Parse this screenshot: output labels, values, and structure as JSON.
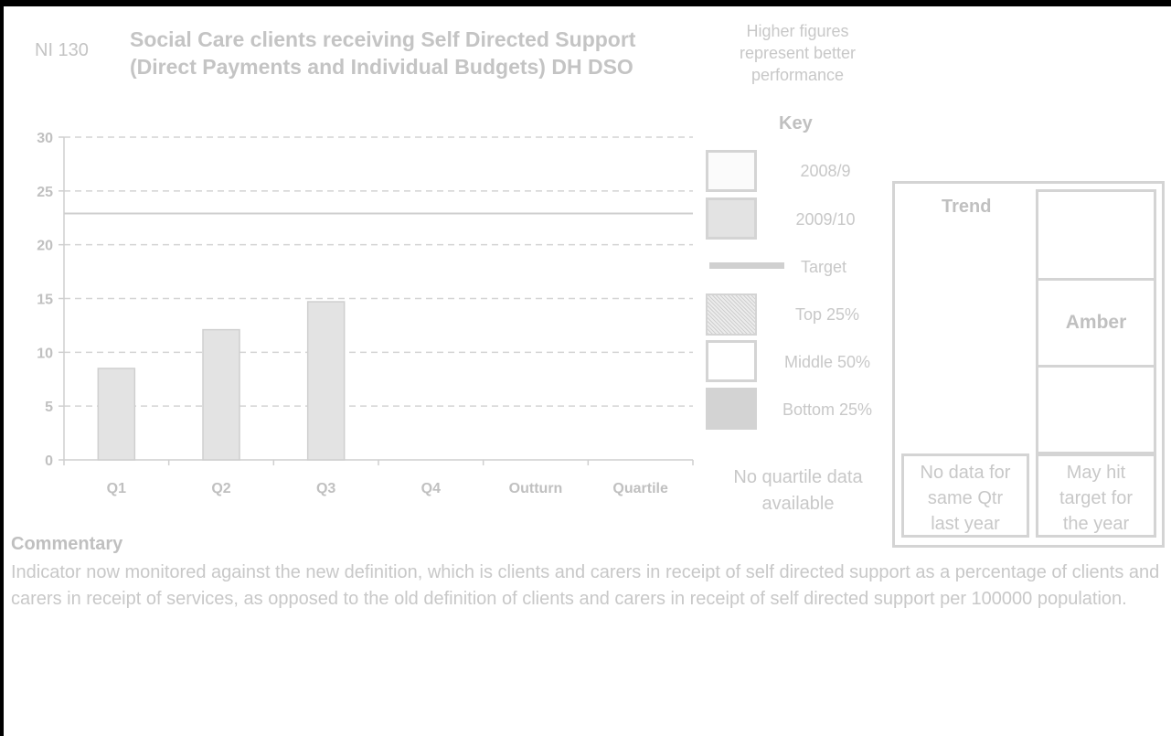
{
  "header": {
    "indicator_code": "NI 130",
    "title_line1": "Social Care clients receiving Self Directed Support",
    "title_line2": "(Direct Payments and Individual Budgets) DH DSO",
    "note_line1": "Higher figures",
    "note_line2": "represent better",
    "note_line3": "performance"
  },
  "chart_data": {
    "type": "bar",
    "categories": [
      "Q1",
      "Q2",
      "Q3",
      "Q4",
      "Outturn",
      "Quartile"
    ],
    "series": [
      {
        "name": "2008/9",
        "values": [
          null,
          null,
          null,
          null,
          null,
          null
        ]
      },
      {
        "name": "2009/10",
        "values": [
          8.5,
          12.1,
          14.7,
          null,
          null,
          null
        ]
      }
    ],
    "target": 22.9,
    "title": "",
    "xlabel": "",
    "ylabel": "",
    "ylim": [
      0,
      30
    ],
    "yticks": [
      "0",
      "5",
      "10",
      "15",
      "20",
      "25",
      "30"
    ],
    "grid": true,
    "legend": "right"
  },
  "key": {
    "title": "Key",
    "items": [
      {
        "label": "2008/9",
        "color": "#fbfbfb"
      },
      {
        "label": "2009/10",
        "color": "#e3e3e3"
      },
      {
        "label": "Target",
        "color": "#d0d0d0"
      },
      {
        "label": "Top 25%",
        "color": "#d6d6d6"
      },
      {
        "label": "Middle 50%",
        "color": "#ffffff"
      },
      {
        "label": "Bottom 25%",
        "color": "#d3d3d3"
      }
    ],
    "no_quartile_line1": "No quartile data",
    "no_quartile_line2": "available"
  },
  "trend": {
    "title": "Trend",
    "status": "Amber",
    "trend_note_line1": "No data for",
    "trend_note_line2": "same Qtr",
    "trend_note_line3": "last year",
    "target_note_line1": "May hit",
    "target_note_line2": "target for",
    "target_note_line3": "the year"
  },
  "commentary": {
    "heading": "Commentary",
    "text": "Indicator now monitored against the new definition, which is clients and carers in receipt of self directed support as a percentage of clients and carers in receipt of services, as opposed to the old definition of clients and carers in receipt of self directed support per 100000 population."
  }
}
